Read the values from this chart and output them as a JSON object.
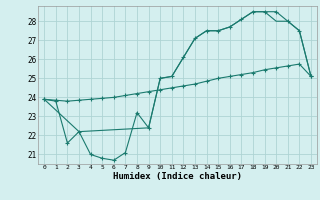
{
  "xlabel": "Humidex (Indice chaleur)",
  "background_color": "#d4efef",
  "grid_color": "#aed4d4",
  "line_color": "#1a7a6e",
  "xlim": [
    -0.5,
    23.5
  ],
  "ylim": [
    20.5,
    28.8
  ],
  "yticks": [
    21,
    22,
    23,
    24,
    25,
    26,
    27,
    28
  ],
  "xticks": [
    0,
    1,
    2,
    3,
    4,
    5,
    6,
    7,
    8,
    9,
    10,
    11,
    12,
    13,
    14,
    15,
    16,
    17,
    18,
    19,
    20,
    21,
    22,
    23
  ],
  "line1_x": [
    0,
    1,
    2,
    3,
    4,
    5,
    6,
    7,
    8,
    9,
    10,
    11,
    12,
    13,
    14,
    15,
    16,
    17,
    18,
    19,
    20,
    21,
    22,
    23
  ],
  "line1_y": [
    23.9,
    23.8,
    21.6,
    22.2,
    21.0,
    20.8,
    20.7,
    21.1,
    23.2,
    22.4,
    25.0,
    25.1,
    26.1,
    27.1,
    27.5,
    27.5,
    27.7,
    28.1,
    28.5,
    28.5,
    28.5,
    28.0,
    27.5,
    25.1
  ],
  "line2_x": [
    0,
    1,
    2,
    3,
    4,
    5,
    6,
    7,
    8,
    9,
    10,
    11,
    12,
    13,
    14,
    15,
    16,
    17,
    18,
    19,
    20,
    21,
    22,
    23
  ],
  "line2_y": [
    23.9,
    23.85,
    23.8,
    23.85,
    23.9,
    23.95,
    24.0,
    24.1,
    24.2,
    24.3,
    24.4,
    24.5,
    24.6,
    24.7,
    24.85,
    25.0,
    25.1,
    25.2,
    25.3,
    25.45,
    25.55,
    25.65,
    25.75,
    25.1
  ],
  "line3_x": [
    0,
    3,
    9,
    10,
    11,
    12,
    13,
    14,
    15,
    16,
    17,
    18,
    19,
    20,
    21,
    22,
    23
  ],
  "line3_y": [
    23.9,
    22.2,
    22.4,
    25.0,
    25.1,
    26.1,
    27.1,
    27.5,
    27.5,
    27.7,
    28.1,
    28.5,
    28.5,
    28.0,
    28.0,
    27.5,
    25.1
  ]
}
